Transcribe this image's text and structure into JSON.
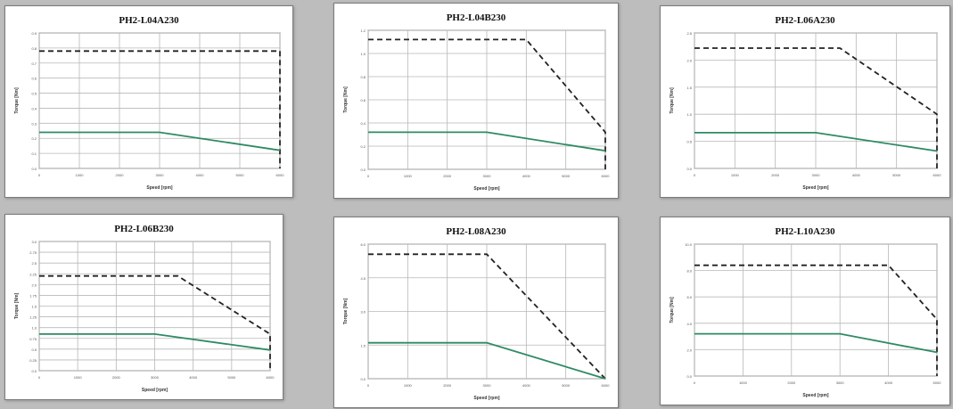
{
  "colors": {
    "background": "#bdbdbd",
    "panel": "#ffffff",
    "grid": "#b8b8b8",
    "peak_line": "#222222",
    "continuous_line": "#2e8b62"
  },
  "charts": [
    {
      "chart_data": {
        "type": "line",
        "title": "PH2-L04A230",
        "xlabel": "Speed [rpm]",
        "ylabel": "Torque [Nm]",
        "xlim": [
          0,
          6000
        ],
        "ylim": [
          0,
          0.9
        ],
        "x_ticks": [
          "0",
          "1000",
          "2000",
          "3000",
          "4000",
          "5000",
          "6000"
        ],
        "y_ticks": [
          "0.0",
          "0.1",
          "0.2",
          "0.3",
          "0.4",
          "0.5",
          "0.6",
          "0.7",
          "0.8",
          "0.9"
        ],
        "grid": true,
        "series": [
          {
            "style": "dashed",
            "x": [
              0,
              6000,
              6000
            ],
            "y": [
              0.78,
              0.78,
              0.0
            ]
          },
          {
            "style": "solid",
            "x": [
              0,
              3000,
              6000
            ],
            "y": [
              0.24,
              0.24,
              0.12
            ]
          }
        ]
      }
    },
    {
      "chart_data": {
        "type": "line",
        "title": "PH2-L04B230",
        "xlabel": "Speed [rpm]",
        "ylabel": "Torque [Nm]",
        "xlim": [
          0,
          6000
        ],
        "ylim": [
          0,
          1.2
        ],
        "x_ticks": [
          "0",
          "1000",
          "2000",
          "3000",
          "4000",
          "5000",
          "6000"
        ],
        "y_ticks": [
          "0.0",
          "0.2",
          "0.4",
          "0.6",
          "0.8",
          "1.0",
          "1.2"
        ],
        "grid": true,
        "series": [
          {
            "style": "dashed",
            "x": [
              0,
              4000,
              6000,
              6000
            ],
            "y": [
              1.12,
              1.12,
              0.32,
              0.0
            ]
          },
          {
            "style": "solid",
            "x": [
              0,
              3000,
              6000
            ],
            "y": [
              0.32,
              0.32,
              0.16
            ]
          }
        ]
      }
    },
    {
      "chart_data": {
        "type": "line",
        "title": "PH2-L06A230",
        "xlabel": "Speed [rpm]",
        "ylabel": "Torque [Nm]",
        "xlim": [
          0,
          6000
        ],
        "ylim": [
          0,
          2.5
        ],
        "x_ticks": [
          "0",
          "1000",
          "2000",
          "3000",
          "4000",
          "5000",
          "6000"
        ],
        "y_ticks": [
          "0.0",
          "0.5",
          "1.0",
          "1.5",
          "2.0",
          "2.5"
        ],
        "grid": true,
        "series": [
          {
            "style": "dashed",
            "x": [
              0,
              3600,
              6000,
              6000
            ],
            "y": [
              2.22,
              2.22,
              1.0,
              0.0
            ]
          },
          {
            "style": "solid",
            "x": [
              0,
              3000,
              6000
            ],
            "y": [
              0.66,
              0.66,
              0.32
            ]
          }
        ]
      }
    },
    {
      "chart_data": {
        "type": "line",
        "title": "PH2-L06B230",
        "xlabel": "Speed [rpm]",
        "ylabel": "Torque [Nm]",
        "xlim": [
          0,
          6000
        ],
        "ylim": [
          0,
          3.0
        ],
        "x_ticks": [
          "0",
          "1000",
          "2000",
          "3000",
          "4000",
          "5000",
          "6000"
        ],
        "y_ticks": [
          "0.0",
          "0.25",
          "0.5",
          "0.75",
          "1.0",
          "1.25",
          "1.5",
          "1.75",
          "2.0",
          "2.25",
          "2.5",
          "2.75",
          "3.0"
        ],
        "grid": true,
        "series": [
          {
            "style": "dashed",
            "x": [
              0,
              3600,
              6000,
              6000
            ],
            "y": [
              2.2,
              2.2,
              0.85,
              0.0
            ]
          },
          {
            "style": "solid",
            "x": [
              0,
              3000,
              6000
            ],
            "y": [
              0.85,
              0.85,
              0.48
            ]
          }
        ]
      }
    },
    {
      "chart_data": {
        "type": "line",
        "title": "PH2-L08A230",
        "xlabel": "Speed [rpm]",
        "ylabel": "Torque [Nm]",
        "xlim": [
          0,
          6000
        ],
        "ylim": [
          0,
          6.0
        ],
        "x_ticks": [
          "0",
          "1000",
          "2000",
          "3000",
          "4000",
          "5000",
          "6000"
        ],
        "y_ticks": [
          "0.0",
          "1.5",
          "3.0",
          "4.5",
          "6.0"
        ],
        "grid": true,
        "series": [
          {
            "style": "dashed",
            "x": [
              0,
              3000,
              6000
            ],
            "y": [
              5.55,
              5.55,
              0.0
            ]
          },
          {
            "style": "solid",
            "x": [
              0,
              3000,
              6000
            ],
            "y": [
              1.6,
              1.6,
              0.0
            ]
          }
        ]
      }
    },
    {
      "chart_data": {
        "type": "line",
        "title": "PH2-L10A230",
        "xlabel": "Speed [rpm]",
        "ylabel": "Torque [Nm]",
        "xlim": [
          0,
          5000
        ],
        "ylim": [
          0,
          10.0
        ],
        "x_ticks": [
          "0",
          "1000",
          "2000",
          "3000",
          "4000",
          "5000"
        ],
        "y_ticks": [
          "0.0",
          "2.0",
          "4.0",
          "6.0",
          "8.0",
          "10.0"
        ],
        "grid": true,
        "series": [
          {
            "style": "dashed",
            "x": [
              0,
              4000,
              5000,
              5000
            ],
            "y": [
              8.4,
              8.4,
              4.3,
              0.0
            ]
          },
          {
            "style": "solid",
            "x": [
              0,
              3000,
              5000
            ],
            "y": [
              3.2,
              3.2,
              1.8
            ]
          }
        ]
      }
    }
  ]
}
